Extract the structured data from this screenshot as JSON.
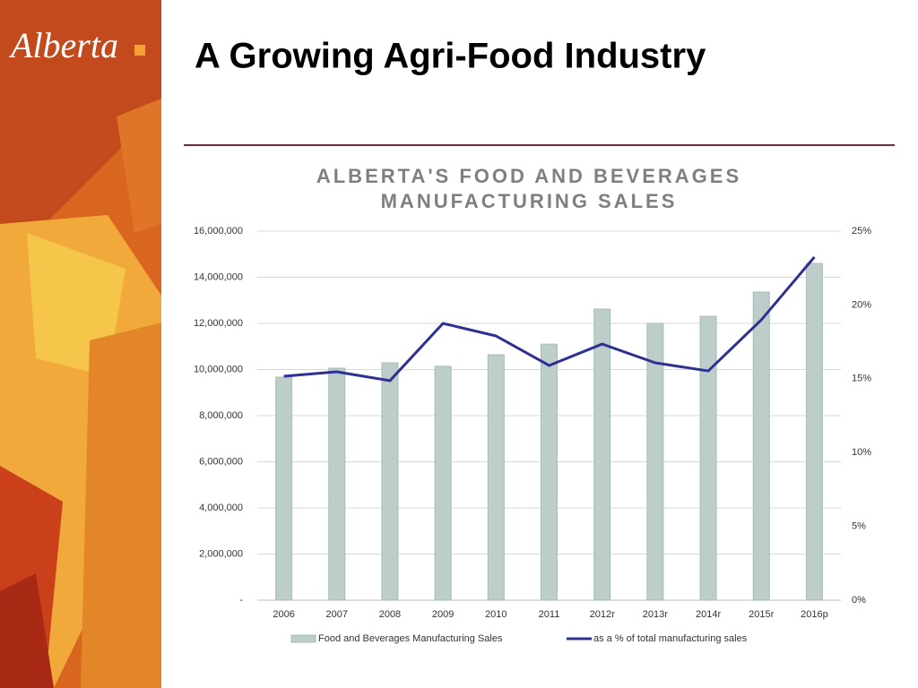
{
  "logo": "Alberta",
  "slide_title": "A Growing Agri-Food Industry",
  "chart_data": {
    "type": "bar_line",
    "title": [
      "ALBERTA'S FOOD AND BEVERAGES",
      "MANUFACTURING SALES"
    ],
    "categories": [
      "2006",
      "2007",
      "2008",
      "2009",
      "2010",
      "2011",
      "2012r",
      "2013r",
      "2014r",
      "2015r",
      "2016p"
    ],
    "series": [
      {
        "name": "Food and Beverages Manufacturing Sales",
        "color": "#bccdca",
        "kind": "bar",
        "values": [
          9670000,
          10060000,
          10290000,
          10140000,
          10640000,
          11100000,
          12620000,
          12000000,
          12310000,
          13360000,
          14600000
        ]
      },
      {
        "name": "as a % of total manufacturing sales",
        "color": "#2e3192",
        "kind": "line",
        "axis": "y2",
        "values": [
          15.17,
          15.47,
          14.87,
          18.75,
          17.9,
          15.9,
          17.35,
          16.08,
          15.53,
          18.99,
          23.24
        ]
      }
    ],
    "ylim": [
      0,
      16000000
    ],
    "yticks": [
      {
        "value": 0,
        "label": "-"
      },
      {
        "value": 2000000,
        "label": "2,000,000"
      },
      {
        "value": 4000000,
        "label": "4,000,000"
      },
      {
        "value": 6000000,
        "label": "6,000,000"
      },
      {
        "value": 8000000,
        "label": "8,000,000"
      },
      {
        "value": 10000000,
        "label": "10,000,000"
      },
      {
        "value": 12000000,
        "label": "12,000,000"
      },
      {
        "value": 14000000,
        "label": "14,000,000"
      },
      {
        "value": 16000000,
        "label": "16,000,000"
      }
    ],
    "y2lim": [
      0,
      25
    ],
    "y2ticks": [
      {
        "value": 0,
        "label": "0%"
      },
      {
        "value": 5,
        "label": "5%"
      },
      {
        "value": 10,
        "label": "10%"
      },
      {
        "value": 15,
        "label": "15%"
      },
      {
        "value": 20,
        "label": "20%"
      },
      {
        "value": 25,
        "label": "25%"
      }
    ],
    "grid": true,
    "legend": "bottom"
  }
}
